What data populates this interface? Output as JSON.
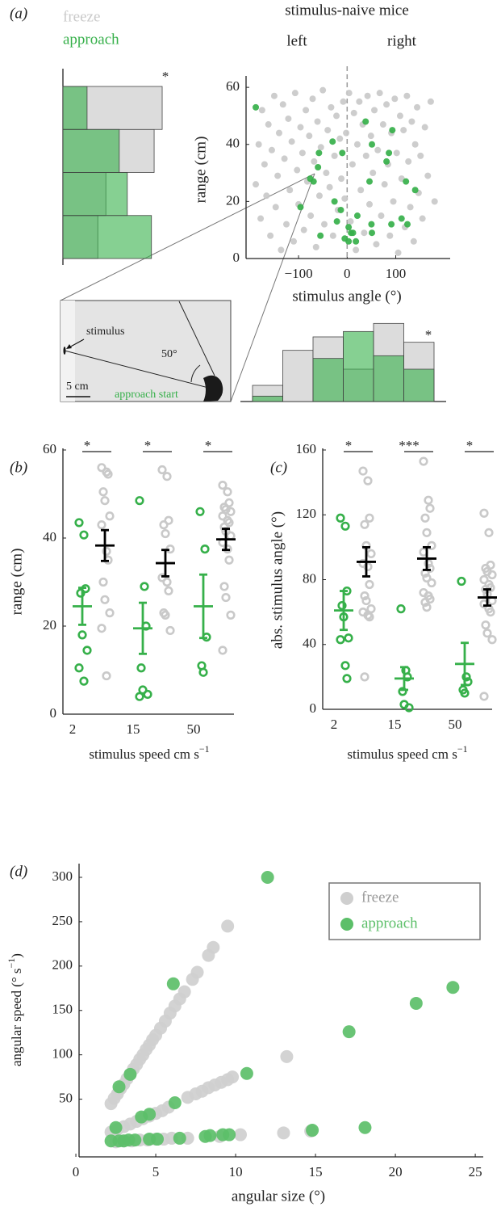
{
  "chart_data": [
    {
      "type": "scatter",
      "panel": "(a)",
      "title": "stimulus-naive mice",
      "annotations": [
        "left",
        "right"
      ],
      "xlabel": "stimulus angle (°)",
      "ylabel": "range (cm)",
      "xlim": [
        -208,
        212
      ],
      "ylim": [
        0,
        62.3
      ],
      "xticks": [
        {
          "value": -100,
          "label": "−100"
        },
        0,
        100
      ],
      "yticks": [
        0,
        20,
        40,
        60
      ],
      "zero_line": true,
      "legend": "above left",
      "marker_size": 4,
      "series": [
        {
          "name": "freeze",
          "color": "#c9c9c9",
          "x": [
            -188,
            -182,
            -178,
            -175,
            -170,
            -166,
            -162,
            -158,
            -155,
            -150,
            -147,
            -143,
            -140,
            -136,
            -132,
            -129,
            -125,
            -121,
            -118,
            -114,
            -110,
            -107,
            -103,
            -100,
            -96,
            -92,
            -89,
            -85,
            -82,
            -78,
            -75,
            -71,
            -68,
            -64,
            -61,
            -57,
            -54,
            -50,
            -47,
            -43,
            -40,
            -36,
            -33,
            -29,
            -26,
            -22,
            -19,
            -15,
            -12,
            -8,
            -5,
            -2,
            4,
            7,
            11,
            14,
            18,
            21,
            25,
            28,
            32,
            35,
            39,
            42,
            46,
            49,
            53,
            56,
            60,
            63,
            67,
            70,
            74,
            77,
            81,
            84,
            88,
            91,
            95,
            98,
            102,
            105,
            109,
            112,
            116,
            119,
            123,
            126,
            130,
            133,
            137,
            140,
            144,
            147,
            151,
            155,
            160,
            166,
            172,
            180
          ],
          "values": [
            26,
            40,
            14,
            52,
            33,
            22,
            47,
            8,
            38,
            57,
            18,
            29,
            44,
            3,
            54,
            35,
            12,
            49,
            24,
            41,
            6,
            58,
            31,
            19,
            46,
            37,
            10,
            52,
            27,
            43,
            15,
            56,
            34,
            4,
            48,
            22,
            39,
            59,
            12,
            30,
            45,
            25,
            53,
            8,
            36,
            50,
            17,
            42,
            28,
            55,
            21,
            44,
            58,
            13,
            33,
            51,
            3,
            40,
            55,
            24,
            47,
            9,
            36,
            57,
            19,
            43,
            30,
            52,
            5,
            38,
            58,
            15,
            47,
            26,
            54,
            33,
            8,
            44,
            20,
            56,
            37,
            2,
            50,
            28,
            45,
            11,
            57,
            34,
            18,
            48,
            6,
            40,
            53,
            23,
            36,
            14,
            46,
            29,
            55,
            20
          ]
        },
        {
          "name": "approach",
          "color": "#36b04a",
          "x": [
            -188,
            38,
            93,
            -30,
            -10,
            -58,
            51,
            86,
            81,
            -60,
            -76,
            -69,
            46,
            121,
            140,
            -26,
            -96,
            -13,
            21,
            112,
            50,
            91,
            124,
            -21,
            3,
            8,
            12,
            51,
            -55,
            -5,
            3,
            18
          ],
          "values": [
            53,
            48,
            45,
            41,
            37,
            37,
            40,
            37,
            34,
            32,
            28,
            27,
            27,
            27,
            24,
            20,
            18,
            17,
            15,
            14,
            12,
            12,
            12,
            13,
            11,
            9,
            9,
            9,
            8,
            7,
            6,
            6
          ]
        }
      ]
    },
    {
      "type": "histogram",
      "orientation": "horizontal",
      "annotation": "*",
      "bins": [
        0,
        15,
        30,
        45,
        60
      ],
      "xlim": [
        0,
        0.4
      ],
      "ylim": [
        0,
        60
      ],
      "series": [
        {
          "color": "#dcdcdc",
          "values": [
            0.13,
            0.16,
            0.34,
            0.37
          ]
        },
        {
          "color": "#36b04a",
          "values": [
            0.33,
            0.24,
            0.21,
            0.09
          ]
        }
      ]
    },
    {
      "type": "histogram",
      "orientation": "vertical",
      "annotation": "*",
      "bins": [
        -150,
        -100,
        -50,
        0,
        50,
        100,
        150
      ],
      "xlim": [
        -170,
        170
      ],
      "ylim": [
        0,
        0.3
      ],
      "series": [
        {
          "color": "#dcdcdc",
          "values": [
            0.06,
            0.19,
            0.24,
            0.12,
            0.29,
            0.22
          ]
        },
        {
          "color": "#36b04a",
          "values": [
            0.02,
            0,
            0.16,
            0.26,
            0.17,
            0.12
          ]
        }
      ]
    },
    {
      "type": "strip",
      "panel": "(b)",
      "categories": [
        "2",
        "15",
        "50"
      ],
      "xlabel_parts": [
        "stimulus speed cm s",
        "−1"
      ],
      "ylabel": "range (cm)",
      "ylim": [
        0,
        60
      ],
      "yticks": [
        0,
        20,
        40,
        60
      ],
      "significance": [
        "*",
        "*",
        "*"
      ],
      "series": [
        {
          "color": "#36b04a",
          "mean_color": "#36b04a",
          "values": [
            [
              43.5,
              40.7,
              28.5,
              27.5,
              18,
              14.5,
              10.5,
              7.5
            ],
            [
              48.5,
              29,
              20,
              10.5,
              5.5,
              4.5,
              4
            ],
            [
              46,
              37.5,
              17.5,
              11,
              9.5
            ]
          ],
          "mean": [
            24.5,
            19.5,
            24.5
          ],
          "error": [
            4.2,
            5.8,
            7.2
          ]
        },
        {
          "color": "#c9c9c9",
          "mean_color": "#000000",
          "values": [
            [
              56,
              55,
              54.5,
              50.5,
              48.5,
              45,
              43,
              37,
              35,
              30,
              26,
              23,
              19.5,
              8.7
            ],
            [
              55.5,
              54,
              44,
              43,
              41,
              37.5,
              31,
              30,
              28,
              23,
              22.5,
              19
            ],
            [
              52,
              50.5,
              48,
              47,
              46.5,
              46,
              45,
              44,
              43.5,
              42.5,
              41.5,
              40.5,
              39,
              37.5,
              35,
              29,
              26.5,
              22.5,
              14.5
            ]
          ],
          "mean": [
            38.3,
            34.3,
            39.7
          ],
          "error": [
            3.5,
            3.0,
            2.4
          ]
        }
      ]
    },
    {
      "type": "strip",
      "panel": "(c)",
      "categories": [
        "2",
        "15",
        "50"
      ],
      "xlabel_parts": [
        "stimulus speed cm s",
        "−1"
      ],
      "ylabel": "abs. stimulus angle (°)",
      "ylim": [
        0,
        160
      ],
      "yticks": [
        0,
        40,
        80,
        120,
        160
      ],
      "significance": [
        "*",
        "***",
        "*"
      ],
      "series": [
        {
          "color": "#36b04a",
          "mean_color": "#36b04a",
          "values": [
            [
              118,
              113,
              73,
              64,
              57,
              44,
              43,
              27,
              19
            ],
            [
              62,
              24,
              20,
              11,
              3,
              1
            ],
            [
              79,
              20,
              17,
              12,
              10
            ]
          ],
          "mean": [
            61,
            19,
            28
          ],
          "error": [
            12,
            7,
            13
          ]
        },
        {
          "color": "#c9c9c9",
          "mean_color": "#000000",
          "values": [
            [
              147,
              141,
              118,
              114,
              101,
              96,
              90,
              88,
              77,
              70,
              67,
              62,
              60,
              58,
              57,
              20
            ],
            [
              153,
              129,
              124,
              118,
              109,
              101,
              97,
              90,
              87,
              84,
              81,
              78,
              72,
              70,
              68,
              66,
              63
            ],
            [
              121,
              109,
              89,
              87,
              85,
              83,
              80,
              77,
              75,
              74,
              71,
              67,
              65,
              62,
              60,
              52,
              47,
              43,
              8
            ]
          ],
          "mean": [
            91,
            93,
            69
          ],
          "error": [
            9,
            7,
            5
          ]
        }
      ]
    },
    {
      "type": "scatter",
      "panel": "(d)",
      "xlabel": "angular size (°)",
      "ylabel_parts": [
        "angular speed (° s",
        "−1",
        ")"
      ],
      "xlim": [
        0.2,
        25.5
      ],
      "ylim": [
        -15,
        310
      ],
      "xticks": [
        0,
        5,
        10,
        15,
        20,
        25
      ],
      "yticks": [
        50,
        100,
        150,
        200,
        250,
        300
      ],
      "legend": "upper right",
      "marker_size": 8,
      "series": [
        {
          "name": "freeze",
          "color": "#cfcfcf",
          "x": [
            2.2,
            2.4,
            2.6,
            2.8,
            3.0,
            3.2,
            3.4,
            3.6,
            3.8,
            4.0,
            4.2,
            4.4,
            4.6,
            4.8,
            5.0,
            5.3,
            5.6,
            5.9,
            6.2,
            6.5,
            6.8,
            7.3,
            7.6,
            8.3,
            8.6,
            9.5,
            2.2,
            2.6,
            3.0,
            3.4,
            3.8,
            4.2,
            4.6,
            5.0,
            5.4,
            5.8,
            7.0,
            7.5,
            7.9,
            8.3,
            8.7,
            9.1,
            9.5,
            9.8,
            13.2,
            2.5,
            3.0,
            3.5,
            4.0,
            4.5,
            5.0,
            5.5,
            6.0,
            7.0,
            9.0,
            10.3,
            13.0,
            14.7
          ],
          "values": [
            45,
            51,
            56,
            62,
            67,
            73,
            78,
            84,
            89,
            95,
            100,
            106,
            111,
            117,
            122,
            130,
            138,
            147,
            155,
            163,
            171,
            185,
            193,
            212,
            221,
            245,
            13,
            16,
            19,
            22,
            25,
            28,
            31,
            34,
            37,
            41,
            52,
            56,
            59,
            63,
            66,
            69,
            72,
            75,
            98,
            2,
            3,
            3,
            4,
            4,
            5,
            5,
            6,
            6,
            8,
            10,
            12,
            14
          ]
        },
        {
          "name": "approach",
          "color": "#5cbf69",
          "x": [
            12,
            6.1,
            3.4,
            2.7,
            23.6,
            21.3,
            17.1,
            10.7,
            6.2,
            4.6,
            4.1,
            2.5,
            18.1,
            14.8,
            9.6,
            9.2,
            8.4,
            8.1,
            6.5,
            5.1,
            4.6,
            3.7,
            3.3,
            3.0,
            2.7,
            2.2
          ],
          "values": [
            300,
            180,
            78,
            64,
            176,
            158,
            126,
            79,
            46,
            33,
            30,
            18,
            18,
            15,
            10,
            10,
            9,
            8,
            6,
            5,
            5,
            4,
            4,
            3,
            3,
            3
          ]
        }
      ]
    }
  ],
  "inset": {
    "stimulus": "stimulus",
    "angle": "50°",
    "scale": "5 cm",
    "start": "approach start"
  }
}
